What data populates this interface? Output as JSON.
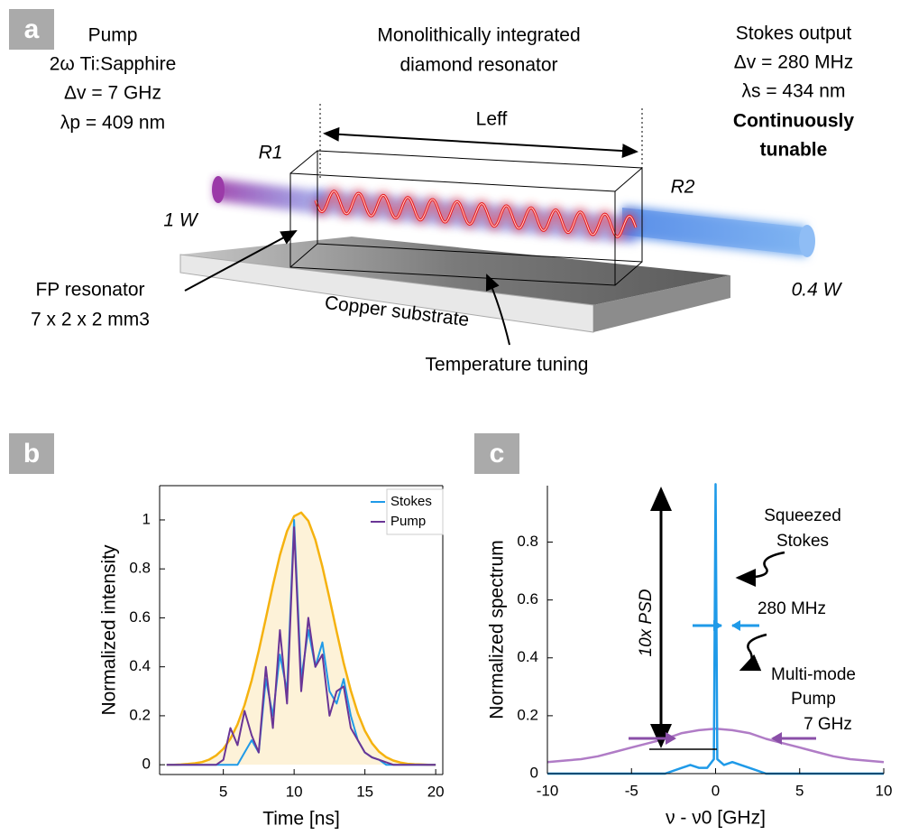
{
  "panel_labels": [
    "a",
    "b",
    "c"
  ],
  "diagram": {
    "pump": [
      "Pump",
      "2ω Ti:Sapphire",
      "Δv = 7 GHz",
      "λp = 409 nm"
    ],
    "resonator_title": [
      "Monolithically integrated",
      "diamond resonator"
    ],
    "length": "Leff",
    "stokes": [
      "Stokes output",
      "Δv = 280 MHz",
      "λs = 434 nm",
      "Continuously",
      "tunable"
    ],
    "mirror_1": "R1",
    "mirror_2": "R2",
    "input_power": "1 W",
    "output_power": "0.4 W",
    "fp_resonator": [
      "FP resonator",
      "7 x 2 x 2 mm3"
    ],
    "substrate": "Copper substrate",
    "tuning": "Temperature tuning"
  },
  "chart_data": [
    {
      "type": "line",
      "xlabel": "Time [ns]",
      "ylabel": "Normalized intensity",
      "xlim": [
        0.5,
        20.5
      ],
      "ylim": [
        -0.04,
        1.14
      ],
      "xticks": [
        5,
        10,
        15,
        20
      ],
      "yticks": [
        0,
        0.2,
        0.4,
        0.6,
        0.8,
        1
      ],
      "box": true,
      "legend": "upper right",
      "x": [
        1,
        1.5,
        2,
        2.5,
        3,
        3.5,
        4,
        4.5,
        5,
        5.5,
        6,
        6.5,
        7,
        7.5,
        8,
        8.5,
        9,
        9.5,
        10,
        10.5,
        11,
        11.5,
        12,
        12.5,
        13,
        13.5,
        14,
        14.5,
        15,
        15.5,
        16,
        16.5,
        17,
        17.5,
        18,
        18.5,
        19,
        19.5,
        20
      ],
      "series": [
        {
          "color": "#f5b20f",
          "fill": "#fdf2d8",
          "values": [
            0,
            0,
            0.001,
            0.003,
            0.006,
            0.011,
            0.021,
            0.038,
            0.065,
            0.106,
            0.165,
            0.244,
            0.345,
            0.465,
            0.598,
            0.732,
            0.856,
            0.954,
            1.015,
            1.03,
            0.996,
            0.919,
            0.809,
            0.679,
            0.544,
            0.415,
            0.303,
            0.21,
            0.139,
            0.088,
            0.053,
            0.031,
            0.017,
            0.009,
            0.004,
            0.002,
            0.001,
            0,
            0
          ]
        },
        {
          "name": "Stokes",
          "color": "#1f9ae8",
          "values": [
            0,
            0,
            0,
            0,
            0,
            0,
            0,
            0,
            0,
            0,
            0,
            0.05,
            0.1,
            0.05,
            0.35,
            0.2,
            0.45,
            0.3,
            1.0,
            0.35,
            0.55,
            0.4,
            0.5,
            0.3,
            0.25,
            0.35,
            0.2,
            0.1,
            0.05,
            0.03,
            0.02,
            0,
            0,
            0,
            0,
            0,
            0,
            0,
            0
          ]
        },
        {
          "name": "Pump",
          "color": "#6a3596",
          "values": [
            0,
            0,
            0,
            0,
            0,
            0,
            0,
            0,
            0.02,
            0.15,
            0.08,
            0.22,
            0.12,
            0.05,
            0.4,
            0.15,
            0.55,
            0.25,
            0.97,
            0.3,
            0.6,
            0.4,
            0.45,
            0.2,
            0.3,
            0.32,
            0.15,
            0.1,
            0.05,
            0.03,
            0.02,
            0.01,
            0,
            0,
            0,
            0,
            0,
            0,
            0
          ]
        }
      ]
    },
    {
      "type": "line",
      "xlabel": "ν - ν0 [GHz]",
      "ylabel": "Normalized spectrum",
      "xlim": [
        -10,
        10
      ],
      "ylim": [
        0,
        0.995
      ],
      "xticks": [
        -10,
        -5,
        0,
        5,
        10
      ],
      "yticks": [
        0,
        0.2,
        0.4,
        0.6,
        0.8
      ],
      "box": false,
      "series": [
        {
          "color": "#b07cc6",
          "x": [
            -10,
            -9,
            -8,
            -7,
            -6,
            -5,
            -4,
            -3,
            -2,
            -1,
            0,
            1,
            2,
            3,
            4,
            5,
            6,
            7,
            8,
            9,
            10
          ],
          "values": [
            0.04,
            0.045,
            0.05,
            0.06,
            0.075,
            0.09,
            0.105,
            0.12,
            0.14,
            0.15,
            0.155,
            0.15,
            0.14,
            0.12,
            0.105,
            0.09,
            0.075,
            0.06,
            0.05,
            0.045,
            0.04
          ]
        },
        {
          "color": "#1f9ae8",
          "x": [
            -10,
            -3,
            -2,
            -1.5,
            -1,
            -0.5,
            -0.1,
            0,
            0.1,
            0.5,
            1,
            1.5,
            2,
            3,
            10
          ],
          "values": [
            0,
            0,
            0.02,
            0.03,
            0.02,
            0.02,
            0.05,
            1.0,
            0.05,
            0.03,
            0.04,
            0.03,
            0.02,
            0,
            0
          ]
        }
      ],
      "annotations": [
        {
          "text": "Squeezed"
        },
        {
          "text": "Stokes",
          "color": "#1f9ae8"
        },
        {
          "text": "280 MHz"
        },
        {
          "text": "Multi-mode"
        },
        {
          "text": "Pump",
          "color": "#a070bb"
        },
        {
          "text": "7 GHz"
        },
        {
          "text": "10x PSD"
        }
      ]
    }
  ]
}
